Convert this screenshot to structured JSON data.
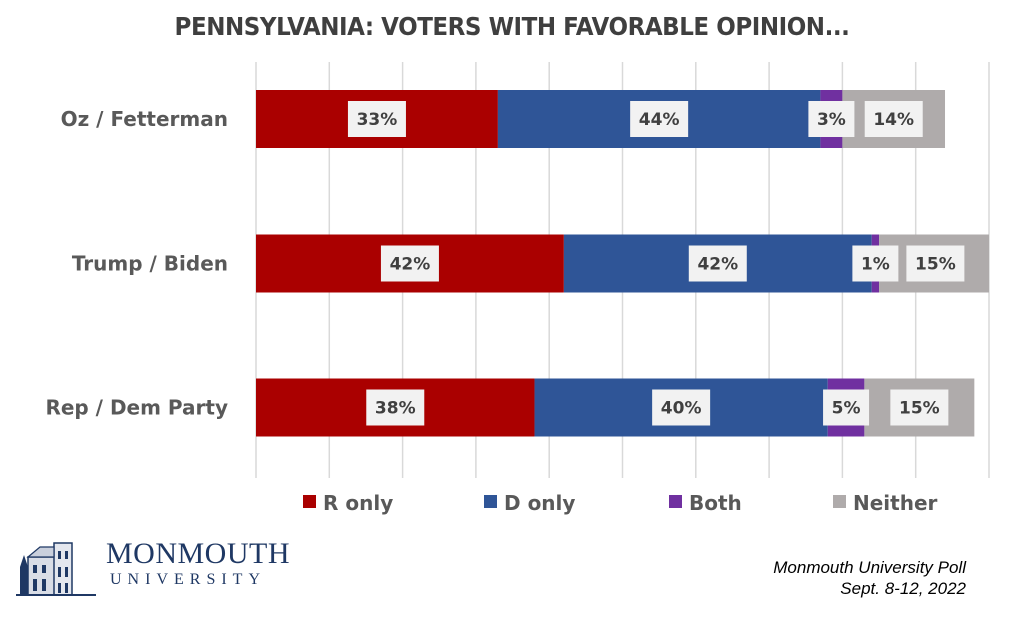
{
  "chart_data": {
    "type": "bar",
    "orientation": "horizontal",
    "stacked": true,
    "title": "PENNSYLVANIA:  VOTERS WITH FAVORABLE OPINION...",
    "xlabel": "",
    "ylabel": "",
    "xlim": [
      0,
      100
    ],
    "grid": true,
    "legend_position": "bottom",
    "categories": [
      "Oz / Fetterman",
      "Trump / Biden",
      "Rep / Dem Party"
    ],
    "series": [
      {
        "name": "R only",
        "color": "#aa0000",
        "values": [
          33,
          42,
          38
        ],
        "labels": [
          "33%",
          "42%",
          "38%"
        ]
      },
      {
        "name": "D only",
        "color": "#2f5597",
        "values": [
          44,
          42,
          40
        ],
        "labels": [
          "44%",
          "42%",
          "40%"
        ]
      },
      {
        "name": "Both",
        "color": "#7030a0",
        "values": [
          3,
          1,
          5
        ],
        "labels": [
          "3%",
          "1%",
          "5%"
        ]
      },
      {
        "name": "Neither",
        "color": "#afabab",
        "values": [
          14,
          15,
          15
        ],
        "labels": [
          "14%",
          "15%",
          "15%"
        ]
      }
    ]
  },
  "logo": {
    "name": "MONMOUTH",
    "sub": "UNIVERSITY"
  },
  "source": {
    "line1": "Monmouth University Poll",
    "line2": "Sept. 8-12, 2022"
  }
}
